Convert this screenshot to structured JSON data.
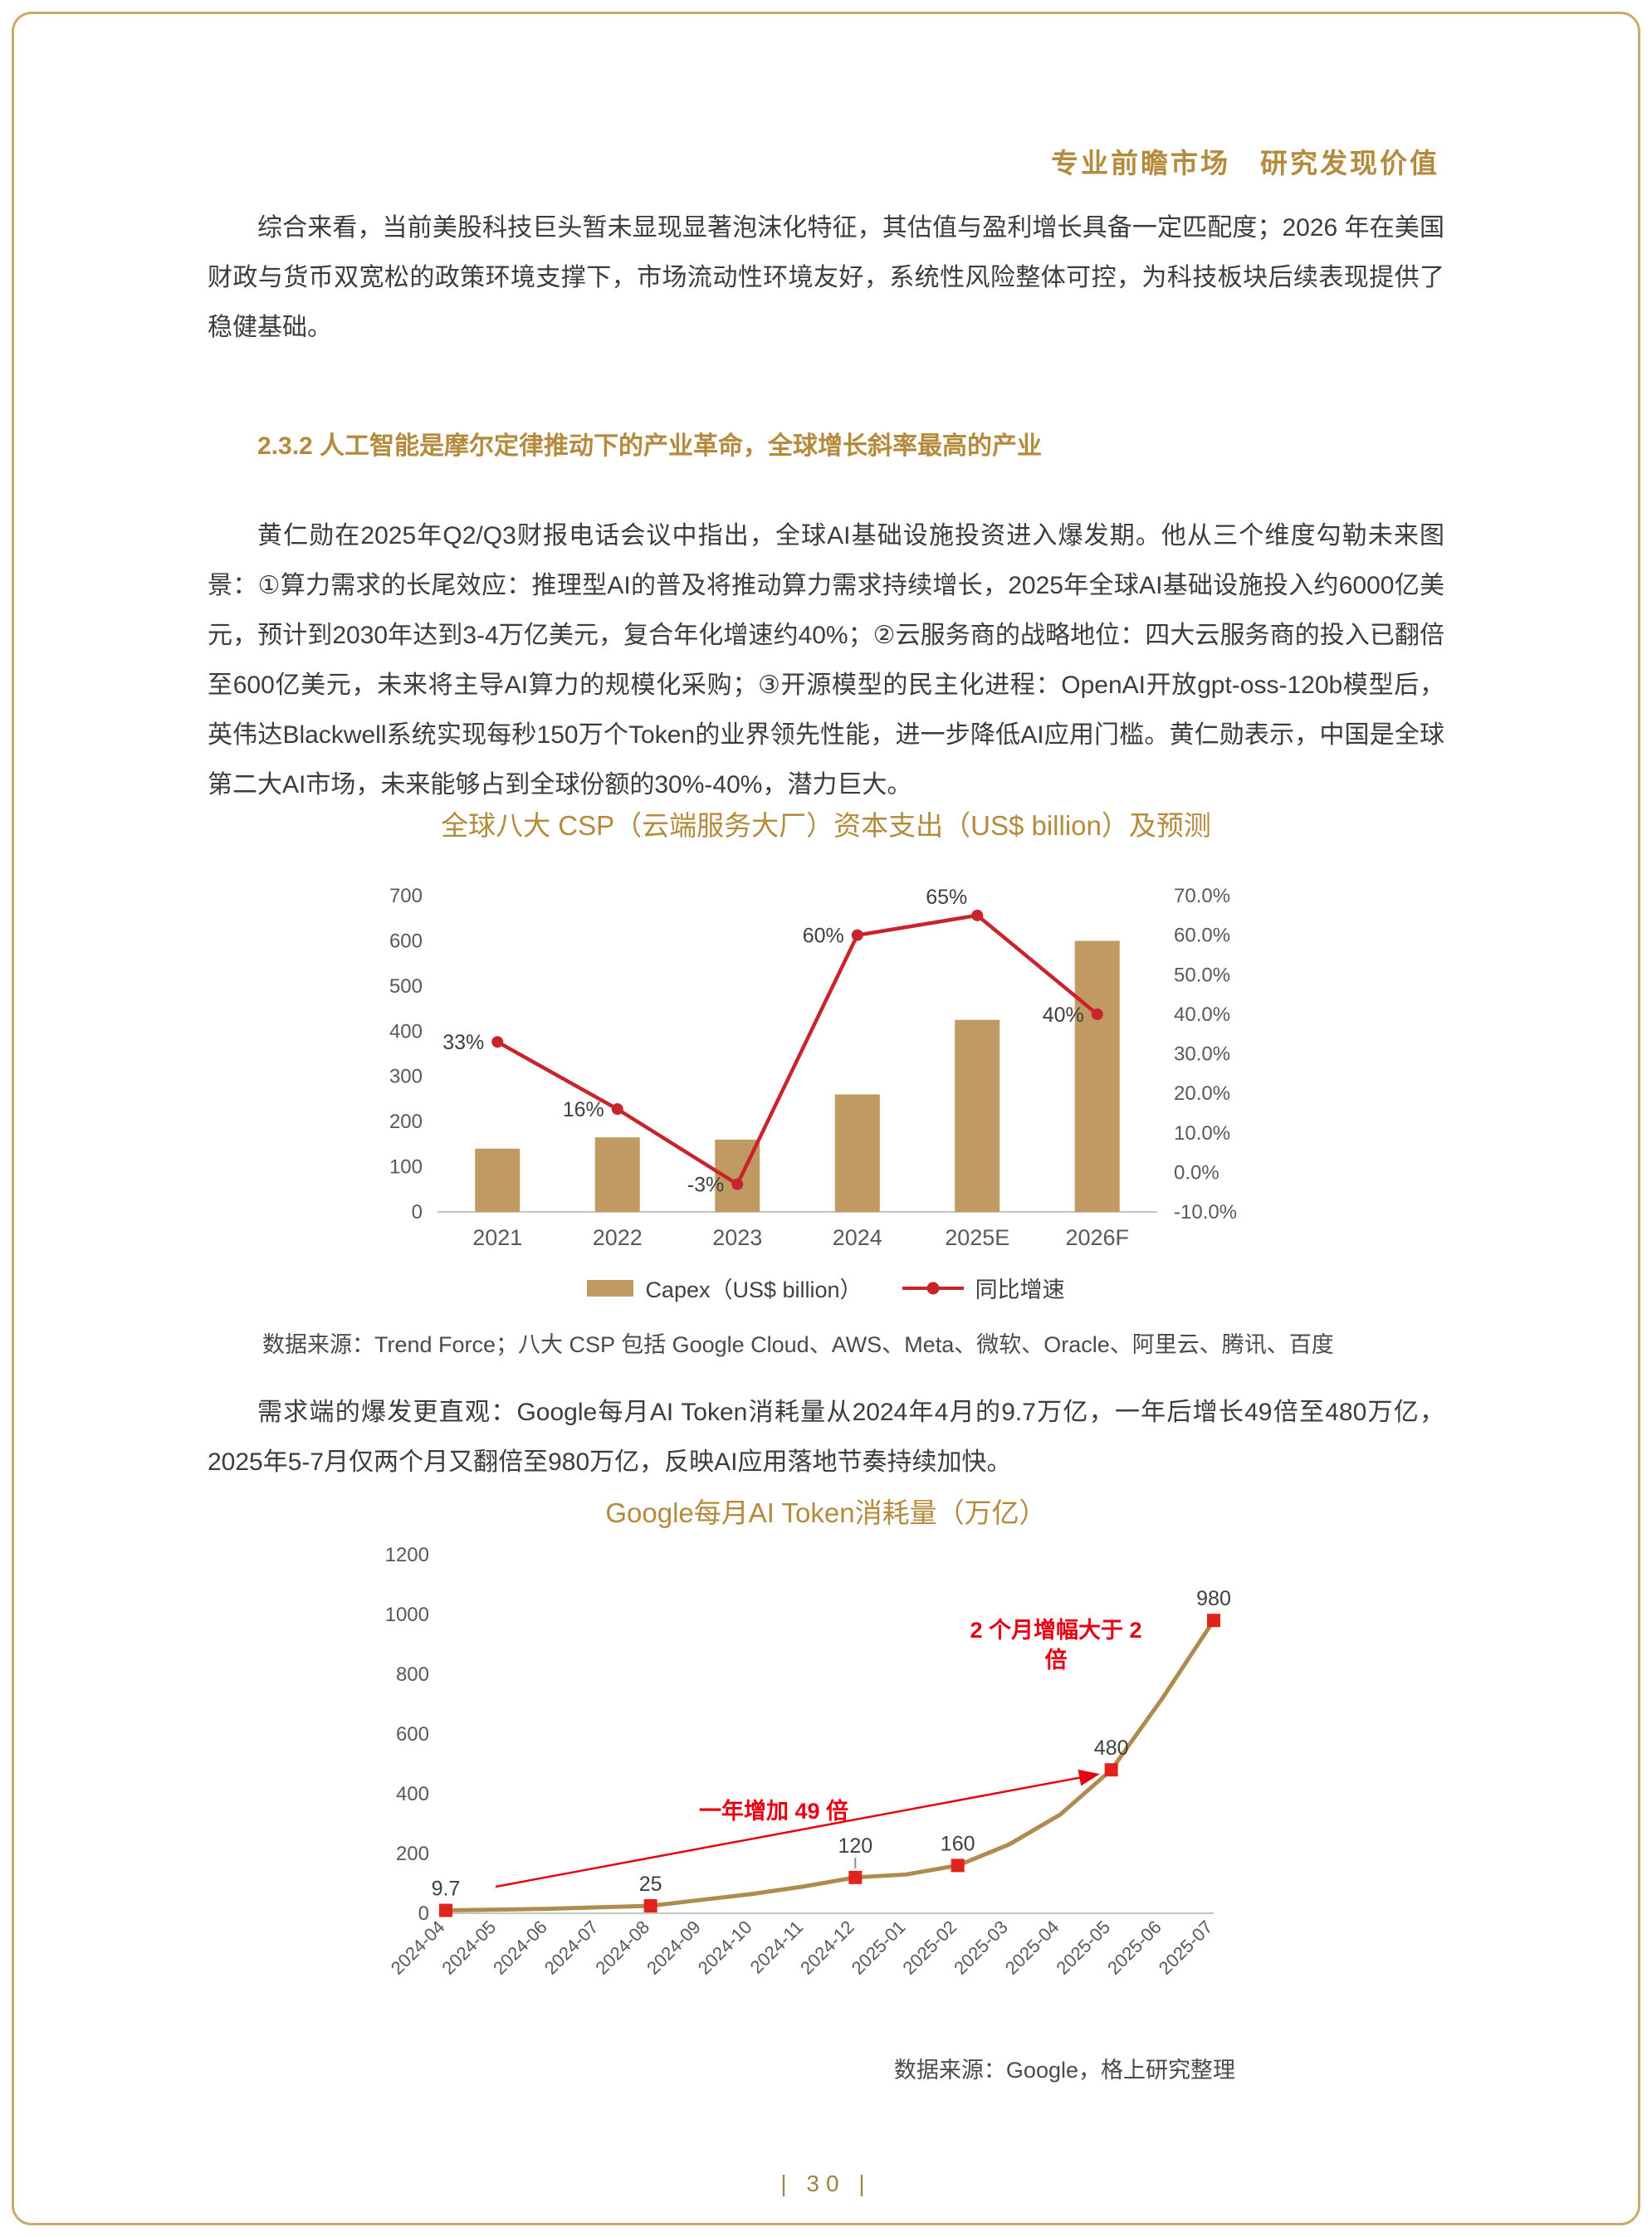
{
  "colors": {
    "accent_gold": "#B48A3C",
    "bar_tan": "#C09A62",
    "growth_line_red": "#C9242C",
    "marker_red": "#E0231B",
    "annotation_red": "#E60012",
    "body_text": "#3C3C3C",
    "axis_gray": "#595959"
  },
  "header": {
    "slogan": "专业前瞻市场　研究发现价值"
  },
  "content": {
    "p1": "综合来看，当前美股科技巨头暂未显现显著泡沫化特征，其估值与盈利增长具备一定匹配度；2026 年在美国财政与货币双宽松的政策环境支撑下，市场流动性环境友好，系统性风险整体可控，为科技板块后续表现提供了稳健基础。",
    "section_heading": "2.3.2 人工智能是摩尔定律推动下的产业革命，全球增长斜率最高的产业",
    "p2": "黄仁勋在2025年Q2/Q3财报电话会议中指出，全球AI基础设施投资进入爆发期。他从三个维度勾勒未来图景：①算力需求的长尾效应：推理型AI的普及将推动算力需求持续增长，2025年全球AI基础设施投入约6000亿美元，预计到2030年达到3-4万亿美元，复合年化增速约40%；②云服务商的战略地位：四大云服务商的投入已翻倍至600亿美元，未来将主导AI算力的规模化采购；③开源模型的民主化进程：OpenAI开放gpt-oss-120b模型后，英伟达Blackwell系统实现每秒150万个Token的业界领先性能，进一步降低AI应用门槛。黄仁勋表示，中国是全球第二大AI市场，未来能够占到全球份额的30%-40%，潜力巨大。",
    "p3": "需求端的爆发更直观：Google每月AI Token消耗量从2024年4月的9.7万亿，一年后增长49倍至480万亿，2025年5-7月仅两个月又翻倍至980万亿，反映AI应用落地节奏持续加快。"
  },
  "chart_data": [
    {
      "type": "bar",
      "title": "全球八大 CSP（云端服务大厂）资本支出（US$ billion）及预测",
      "categories": [
        "2021",
        "2022",
        "2023",
        "2024",
        "2025E",
        "2026F"
      ],
      "series": [
        {
          "name": "Capex（US$ billion）",
          "kind": "bar",
          "axis": "left",
          "values": [
            140,
            165,
            160,
            260,
            425,
            600
          ]
        },
        {
          "name": "同比增速",
          "kind": "line",
          "axis": "right",
          "values": [
            33,
            16,
            -3,
            60,
            65,
            40
          ],
          "point_labels": [
            "33%",
            "16%",
            "-3%",
            "60%",
            "65%",
            "40%"
          ]
        }
      ],
      "left_axis": {
        "min": 0,
        "max": 700,
        "step": 100
      },
      "right_axis": {
        "min": -10,
        "max": 70,
        "step": 10,
        "suffix": "%"
      },
      "grid": false,
      "legend_position": "bottom",
      "source": "数据来源：Trend Force；八大 CSP 包括 Google Cloud、AWS、Meta、微软、Oracle、阿里云、腾讯、百度",
      "colors": {
        "bar": "#C09A62",
        "line": "#C9242C"
      }
    },
    {
      "type": "line",
      "title": "Google每月AI Token消耗量（万亿）",
      "x": [
        "2024-04",
        "2024-05",
        "2024-06",
        "2024-07",
        "2024-08",
        "2024-09",
        "2024-10",
        "2024-11",
        "2024-12",
        "2025-01",
        "2025-02",
        "2025-03",
        "2025-04",
        "2025-05",
        "2025-06",
        "2025-07"
      ],
      "values": [
        9.7,
        12,
        15,
        20,
        25,
        45,
        65,
        90,
        120,
        130,
        160,
        230,
        330,
        480,
        720,
        980
      ],
      "ylim": [
        0,
        1200
      ],
      "ystep": 200,
      "labeled_points": [
        {
          "index": 0,
          "label": "9.7"
        },
        {
          "index": 4,
          "label": "25"
        },
        {
          "index": 8,
          "label": "120",
          "leader": true
        },
        {
          "index": 10,
          "label": "160"
        },
        {
          "index": 13,
          "label": "480"
        },
        {
          "index": 15,
          "label": "980"
        }
      ],
      "annotations": [
        {
          "text": "一年增加 49 倍"
        },
        {
          "text": "2 个月增幅大于 2 倍",
          "lines": [
            "2 个月增幅大于 2",
            "倍"
          ]
        }
      ],
      "grid": false,
      "source": "数据来源：Google，格上研究整理",
      "colors": {
        "line": "#B08B4F",
        "marker": "#E0231B",
        "annotation": "#E60012"
      }
    }
  ],
  "footer": {
    "page_number": "| 30 |"
  }
}
